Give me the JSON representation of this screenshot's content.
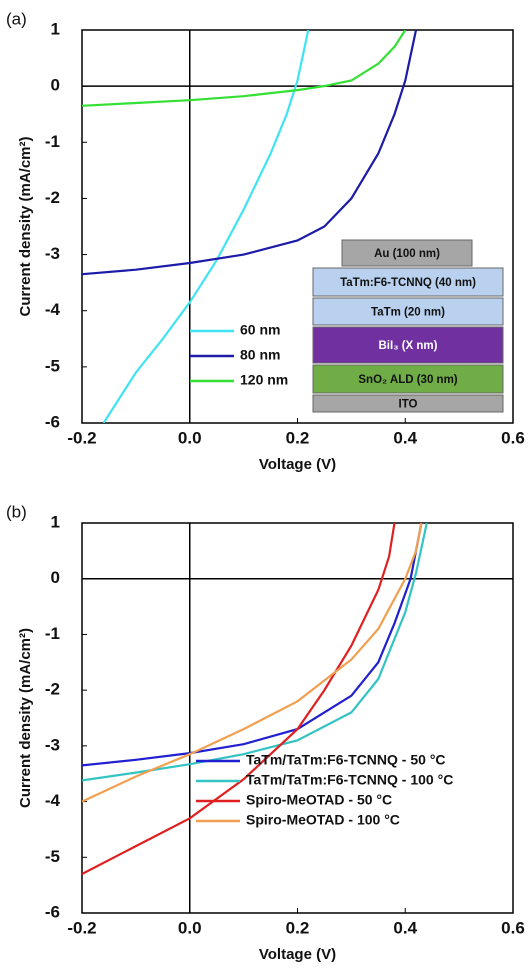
{
  "chart_data": [
    {
      "type": "line",
      "panel_label": "(a)",
      "xlabel": "Voltage (V)",
      "ylabel": "Current density (mA/cm²)",
      "xlim": [
        -0.2,
        0.6
      ],
      "ylim": [
        -6,
        1
      ],
      "xticks": [
        -0.2,
        {
          "value": 0,
          "label": "0.0"
        },
        0.2,
        0.4,
        0.6
      ],
      "yticks": [
        -6,
        -5,
        -4,
        -3,
        -2,
        -1,
        0,
        1
      ],
      "grid": false,
      "zero_lines": true,
      "legend": "lower center",
      "series": [
        {
          "name": "60 nm",
          "color": "#3fe3f2",
          "x": [
            -0.16,
            -0.1,
            -0.05,
            0,
            0.05,
            0.1,
            0.15,
            0.18,
            0.2,
            0.22
          ],
          "values": [
            -6,
            -5.1,
            -4.5,
            -3.85,
            -3.1,
            -2.2,
            -1.2,
            -0.5,
            0.1,
            1
          ]
        },
        {
          "name": "80 nm",
          "color": "#1c1ca8",
          "x": [
            -0.2,
            -0.1,
            0,
            0.1,
            0.2,
            0.25,
            0.3,
            0.35,
            0.38,
            0.4,
            0.42
          ],
          "values": [
            -3.35,
            -3.27,
            -3.15,
            -3.0,
            -2.75,
            -2.5,
            -2.0,
            -1.2,
            -0.5,
            0.1,
            1
          ]
        },
        {
          "name": "120 nm",
          "color": "#33e033",
          "x": [
            -0.2,
            -0.1,
            0,
            0.1,
            0.2,
            0.25,
            0.3,
            0.35,
            0.38,
            0.4
          ],
          "values": [
            -0.35,
            -0.3,
            -0.25,
            -0.18,
            -0.07,
            0,
            0.1,
            0.4,
            0.7,
            1
          ]
        }
      ],
      "inset_layers": [
        {
          "label": "Au (100 nm)",
          "color": "#a6a6a6"
        },
        {
          "label": "TaTm:F6-TCNNQ (40 nm)",
          "color": "#b9d1ee"
        },
        {
          "label": "TaTm (20 nm)",
          "color": "#b9d1ee"
        },
        {
          "label": "BiI₃ (X nm)",
          "color": "#7030a0"
        },
        {
          "label": "SnO₂ ALD (30 nm)",
          "color": "#70ad47"
        },
        {
          "label": "ITO",
          "color": "#a6a6a6"
        }
      ]
    },
    {
      "type": "line",
      "panel_label": "(b)",
      "xlabel": "Voltage (V)",
      "ylabel": "Current density (mA/cm²)",
      "xlim": [
        -0.2,
        0.6
      ],
      "ylim": [
        -6,
        1
      ],
      "xticks": [
        -0.2,
        {
          "value": 0,
          "label": "0.0"
        },
        0.2,
        0.4,
        0.6
      ],
      "yticks": [
        -6,
        -5,
        -4,
        -3,
        -2,
        -1,
        0,
        1
      ],
      "grid": false,
      "zero_lines": true,
      "legend": "lower right",
      "series": [
        {
          "name": "TaTm/TaTm:F6-TCNNQ - 50 °C",
          "color": "#2020d0",
          "x": [
            -0.2,
            -0.1,
            0,
            0.1,
            0.2,
            0.3,
            0.35,
            0.38,
            0.41,
            0.43
          ],
          "values": [
            -3.35,
            -3.25,
            -3.13,
            -2.97,
            -2.7,
            -2.1,
            -1.5,
            -0.8,
            0,
            1
          ]
        },
        {
          "name": "TaTm/TaTm:F6-TCNNQ - 100 °C",
          "color": "#33c3c3",
          "x": [
            -0.2,
            -0.1,
            0,
            0.1,
            0.2,
            0.3,
            0.35,
            0.4,
            0.42,
            0.44
          ],
          "values": [
            -3.62,
            -3.48,
            -3.33,
            -3.15,
            -2.9,
            -2.4,
            -1.8,
            -0.6,
            0.1,
            1
          ]
        },
        {
          "name": "Spiro-MeOTAD - 50 °C",
          "color": "#e02020",
          "x": [
            -0.2,
            -0.1,
            0,
            0.1,
            0.2,
            0.25,
            0.3,
            0.35,
            0.37,
            0.38
          ],
          "values": [
            -5.3,
            -4.8,
            -4.3,
            -3.6,
            -2.7,
            -2.0,
            -1.2,
            -0.2,
            0.4,
            1
          ]
        },
        {
          "name": "Spiro-MeOTAD - 100 °C",
          "color": "#f0a050",
          "x": [
            -0.2,
            -0.1,
            0,
            0.1,
            0.2,
            0.3,
            0.35,
            0.4,
            0.42,
            0.43
          ],
          "values": [
            -4.0,
            -3.55,
            -3.15,
            -2.7,
            -2.2,
            -1.45,
            -0.9,
            0,
            0.5,
            1
          ]
        }
      ]
    }
  ]
}
